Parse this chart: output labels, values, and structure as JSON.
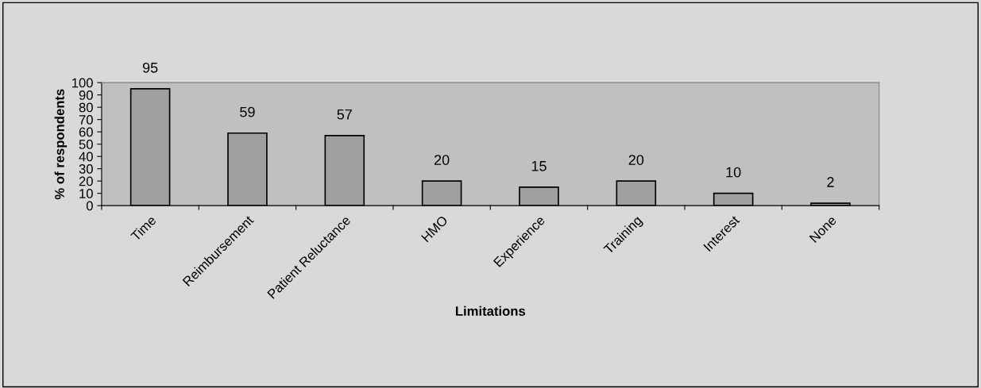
{
  "chart_data": {
    "type": "bar",
    "xlabel": "Limitations",
    "ylabel": "% of respondents",
    "categories": [
      "Time",
      "Reimbursement",
      "Patient Reluctance",
      "HMO",
      "Experience",
      "Training",
      "Interest",
      "None"
    ],
    "values": [
      95,
      59,
      57,
      20,
      15,
      20,
      10,
      2
    ],
    "color": "#a0a0a0",
    "ylim": [
      0,
      100
    ],
    "yticks": [
      0,
      10,
      20,
      30,
      40,
      50,
      60,
      70,
      80,
      90,
      100
    ],
    "data_labels": true,
    "grid": false,
    "legend": false
  }
}
